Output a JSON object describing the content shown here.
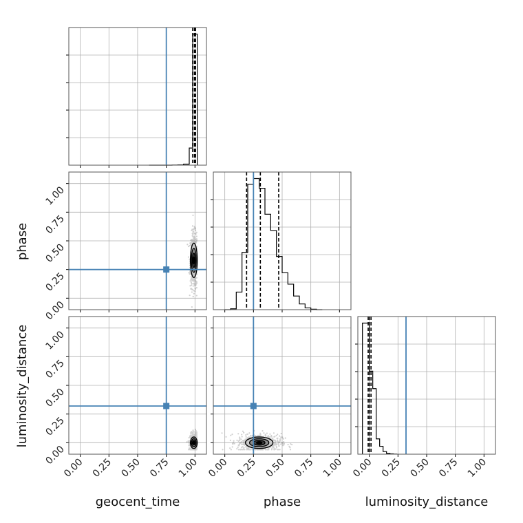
{
  "chart_data": {
    "type": "corner",
    "parameters": [
      "geocent_time",
      "phase",
      "luminosity_distance"
    ],
    "tick_values": [
      0.0,
      0.25,
      0.5,
      0.75,
      1.0
    ],
    "tick_labels": [
      "0.00",
      "0.25",
      "0.50",
      "0.75",
      "1.00"
    ],
    "range": [
      -0.1,
      1.1
    ],
    "truths": {
      "geocent_time": 0.75,
      "phase": 0.25,
      "luminosity_distance": 0.32
    },
    "truth_color": "#4682b4",
    "quantiles": {
      "geocent_time": [
        0.98,
        0.995,
        1.005
      ],
      "phase": [
        0.19,
        0.31,
        0.47
      ],
      "luminosity_distance": [
        -0.01,
        0.0,
        0.015
      ]
    },
    "histograms": {
      "geocent_time": {
        "edges": [
          0.6,
          0.8,
          0.85,
          0.9,
          0.95,
          0.98,
          1.0,
          1.02
        ],
        "counts": [
          0,
          2,
          5,
          18,
          300,
          2300,
          2300
        ]
      },
      "phase": {
        "edges": [
          0.0,
          0.05,
          0.1,
          0.15,
          0.2,
          0.25,
          0.3,
          0.35,
          0.4,
          0.45,
          0.5,
          0.55,
          0.6,
          0.65,
          0.7,
          0.75,
          0.8,
          0.85
        ],
        "counts": [
          0,
          20,
          400,
          1300,
          2850,
          2980,
          2760,
          2170,
          1800,
          1210,
          840,
          580,
          310,
          130,
          40,
          10,
          0
        ]
      },
      "luminosity_distance": {
        "edges": [
          -0.06,
          -0.03,
          0.0,
          0.03,
          0.06,
          0.09,
          0.12,
          0.15,
          0.18,
          0.21,
          0.24
        ],
        "counts": [
          3000,
          3000,
          1900,
          1500,
          350,
          180,
          60,
          20,
          8,
          3
        ]
      }
    },
    "scatter_2d": [
      {
        "x": "geocent_time",
        "y": "phase",
        "center": [
          0.99,
          0.33
        ],
        "spread": [
          0.02,
          0.15
        ]
      },
      {
        "x": "geocent_time",
        "y": "luminosity_distance",
        "center": [
          0.99,
          0.0
        ],
        "spread": [
          0.02,
          0.05
        ]
      },
      {
        "x": "phase",
        "y": "luminosity_distance",
        "center": [
          0.3,
          0.0
        ],
        "spread": [
          0.12,
          0.05
        ]
      }
    ]
  }
}
